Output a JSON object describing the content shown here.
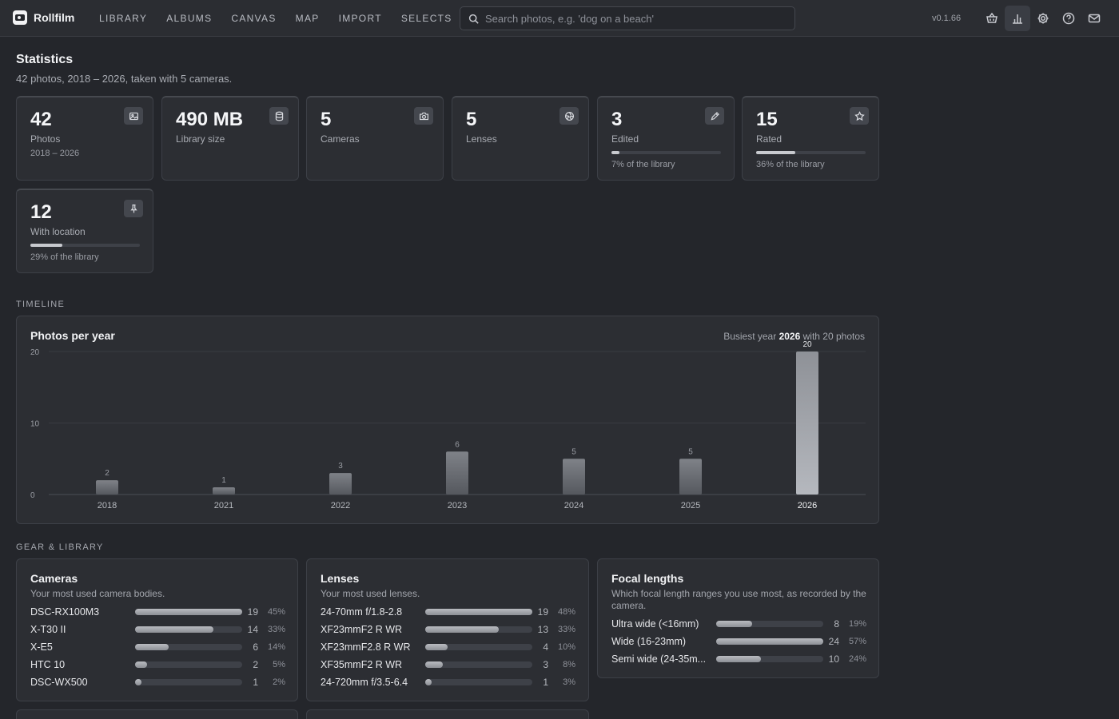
{
  "app": {
    "name": "Rollfilm",
    "version": "v0.1.66"
  },
  "nav": [
    "LIBRARY",
    "ALBUMS",
    "CANVAS",
    "MAP",
    "IMPORT",
    "SELECTS"
  ],
  "search": {
    "placeholder": "Search photos, e.g. 'dog on a beach'",
    "value": ""
  },
  "top_icons": [
    "basket-icon",
    "stats-icon",
    "settings-icon",
    "help-icon",
    "mail-icon"
  ],
  "header": {
    "title": "Statistics",
    "subtitle": "42 photos, 2018 – 2026, taken with 5 cameras."
  },
  "cards": [
    {
      "value": "42",
      "label": "Photos",
      "sub": "2018 – 2026",
      "icon": "image-icon"
    },
    {
      "value": "490 MB",
      "label": "Library size",
      "sub": "",
      "icon": "database-icon"
    },
    {
      "value": "5",
      "label": "Cameras",
      "sub": "",
      "icon": "camera-icon"
    },
    {
      "value": "5",
      "label": "Lenses",
      "sub": "",
      "icon": "aperture-icon"
    },
    {
      "value": "3",
      "label": "Edited",
      "sub": "7% of the library",
      "icon": "pencil-icon",
      "fraction": 0.07
    },
    {
      "value": "15",
      "label": "Rated",
      "sub": "36% of the library",
      "icon": "star-icon",
      "fraction": 0.36
    },
    {
      "value": "12",
      "label": "With location",
      "sub": "29% of the library",
      "icon": "pin-icon",
      "fraction": 0.29
    }
  ],
  "timeline": {
    "section_label": "TIMELINE",
    "title": "Photos per year",
    "busiest_prefix": "Busiest year",
    "busiest_year": "2026",
    "busiest_suffix": "with 20 photos"
  },
  "chart_data": {
    "type": "bar",
    "title": "Photos per year",
    "categories": [
      "2018",
      "2021",
      "2022",
      "2023",
      "2024",
      "2025",
      "2026"
    ],
    "values": [
      2,
      1,
      3,
      6,
      5,
      5,
      20
    ],
    "yticks": [
      0,
      10,
      20
    ],
    "ylim": [
      0,
      20
    ],
    "grid": true,
    "highlight": "2026"
  },
  "gear": {
    "section_label": "GEAR & LIBRARY",
    "cameras": {
      "title": "Cameras",
      "desc": "Your most used camera bodies.",
      "rows": [
        {
          "name": "DSC-RX100M3",
          "count": "19",
          "pct": "45%",
          "fraction": 0.45
        },
        {
          "name": "X-T30 II",
          "count": "14",
          "pct": "33%",
          "fraction": 0.33
        },
        {
          "name": "X-E5",
          "count": "6",
          "pct": "14%",
          "fraction": 0.14
        },
        {
          "name": "HTC 10",
          "count": "2",
          "pct": "5%",
          "fraction": 0.05
        },
        {
          "name": "DSC-WX500",
          "count": "1",
          "pct": "2%",
          "fraction": 0.02
        }
      ]
    },
    "lenses": {
      "title": "Lenses",
      "desc": "Your most used lenses.",
      "rows": [
        {
          "name": "24-70mm f/1.8-2.8",
          "count": "19",
          "pct": "48%",
          "fraction": 0.48
        },
        {
          "name": "XF23mmF2 R WR",
          "count": "13",
          "pct": "33%",
          "fraction": 0.33
        },
        {
          "name": "XF23mmF2.8 R WR",
          "count": "4",
          "pct": "10%",
          "fraction": 0.1
        },
        {
          "name": "XF35mmF2 R WR",
          "count": "3",
          "pct": "8%",
          "fraction": 0.08
        },
        {
          "name": "24-720mm f/3.5-6.4",
          "count": "1",
          "pct": "3%",
          "fraction": 0.03
        }
      ]
    },
    "focal": {
      "title": "Focal lengths",
      "desc": "Which focal length ranges you use most, as recorded by the camera.",
      "rows": [
        {
          "name": "Ultra wide (<16mm)",
          "count": "8",
          "pct": "19%",
          "fraction": 0.19
        },
        {
          "name": "Wide (16-23mm)",
          "count": "24",
          "pct": "57%",
          "fraction": 0.57
        },
        {
          "name": "Semi wide (24-35m...",
          "count": "10",
          "pct": "24%",
          "fraction": 0.24
        }
      ]
    }
  }
}
